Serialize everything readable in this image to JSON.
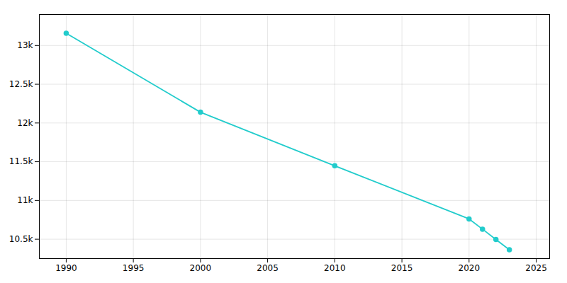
{
  "chart_data": {
    "type": "line",
    "x": [
      1990,
      2000,
      2010,
      2020,
      2021,
      2022,
      2023
    ],
    "values": [
      13158,
      12139,
      11448,
      10762,
      10630,
      10497,
      10364
    ],
    "color": "#22CCCC",
    "marker": "o",
    "xlim": [
      1988,
      2026
    ],
    "ylim": [
      10250,
      13400
    ],
    "xticks": [
      1990,
      1995,
      2000,
      2005,
      2010,
      2015,
      2020,
      2025
    ],
    "yticks": [
      {
        "value": 10500,
        "label": "10.5k"
      },
      {
        "value": 11000,
        "label": "11k"
      },
      {
        "value": 11500,
        "label": "11.5k"
      },
      {
        "value": 12000,
        "label": "12k"
      },
      {
        "value": 12500,
        "label": "12.5k"
      },
      {
        "value": 13000,
        "label": "13k"
      }
    ],
    "grid": true
  }
}
